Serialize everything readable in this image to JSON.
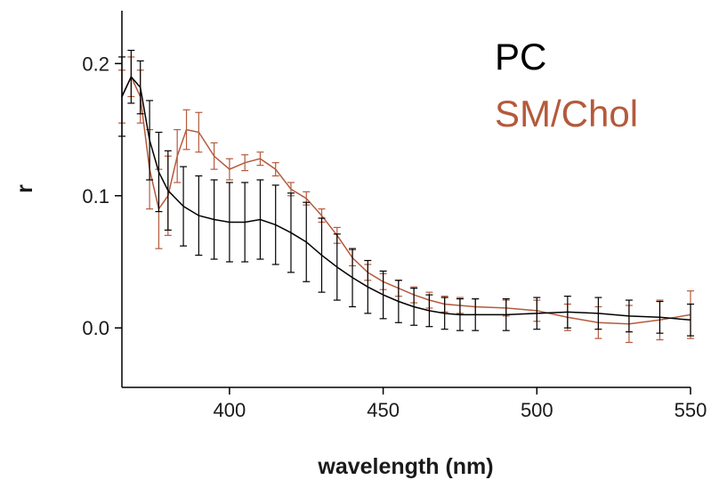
{
  "chart_data": {
    "type": "line",
    "title": "",
    "xlabel": "wavelength (nm)",
    "ylabel": "r",
    "xlim": [
      365,
      550
    ],
    "ylim": [
      -0.045,
      0.24
    ],
    "x_ticks": [
      400,
      450,
      500,
      550
    ],
    "y_ticks": [
      0.0,
      0.1,
      0.2
    ],
    "x_tick_labels": [
      "400",
      "450",
      "500",
      "550"
    ],
    "y_tick_labels": [
      "0.0",
      "0.1",
      "0.2"
    ],
    "grid": false,
    "legend_position": "top-right",
    "error_bars": true,
    "series": [
      {
        "name": "PC",
        "color": "#000000",
        "x": [
          365,
          368,
          371,
          374,
          377,
          380,
          385,
          390,
          395,
          400,
          405,
          410,
          415,
          420,
          425,
          430,
          435,
          440,
          445,
          450,
          455,
          460,
          465,
          470,
          475,
          480,
          490,
          500,
          510,
          520,
          530,
          540,
          550
        ],
        "y": [
          0.175,
          0.19,
          0.182,
          0.142,
          0.118,
          0.104,
          0.092,
          0.085,
          0.082,
          0.08,
          0.08,
          0.082,
          0.078,
          0.072,
          0.065,
          0.055,
          0.046,
          0.038,
          0.031,
          0.025,
          0.02,
          0.016,
          0.013,
          0.011,
          0.01,
          0.01,
          0.01,
          0.011,
          0.012,
          0.011,
          0.009,
          0.008,
          0.006
        ],
        "error": [
          0.03,
          0.02,
          0.02,
          0.03,
          0.03,
          0.03,
          0.03,
          0.03,
          0.03,
          0.03,
          0.03,
          0.03,
          0.03,
          0.03,
          0.03,
          0.028,
          0.025,
          0.022,
          0.02,
          0.018,
          0.016,
          0.014,
          0.012,
          0.012,
          0.012,
          0.012,
          0.012,
          0.012,
          0.012,
          0.012,
          0.012,
          0.012,
          0.012
        ]
      },
      {
        "name": "SM/Chol",
        "color": "#b45a3c",
        "x": [
          365,
          368,
          371,
          374,
          377,
          380,
          383,
          386,
          390,
          395,
          400,
          405,
          410,
          415,
          420,
          425,
          430,
          435,
          440,
          445,
          450,
          455,
          460,
          465,
          470,
          475,
          480,
          490,
          500,
          510,
          520,
          530,
          540,
          550
        ],
        "y": [
          0.175,
          0.19,
          0.175,
          0.12,
          0.09,
          0.1,
          0.13,
          0.15,
          0.148,
          0.13,
          0.12,
          0.125,
          0.128,
          0.12,
          0.105,
          0.098,
          0.085,
          0.07,
          0.053,
          0.042,
          0.035,
          0.03,
          0.025,
          0.021,
          0.018,
          0.017,
          0.016,
          0.015,
          0.013,
          0.008,
          0.004,
          0.003,
          0.006,
          0.01
        ],
        "error": [
          0.02,
          0.015,
          0.02,
          0.03,
          0.03,
          0.03,
          0.02,
          0.015,
          0.015,
          0.01,
          0.008,
          0.006,
          0.005,
          0.005,
          0.005,
          0.005,
          0.005,
          0.006,
          0.006,
          0.006,
          0.006,
          0.006,
          0.006,
          0.006,
          0.006,
          0.006,
          0.006,
          0.006,
          0.008,
          0.01,
          0.012,
          0.014,
          0.015,
          0.018
        ]
      }
    ]
  }
}
